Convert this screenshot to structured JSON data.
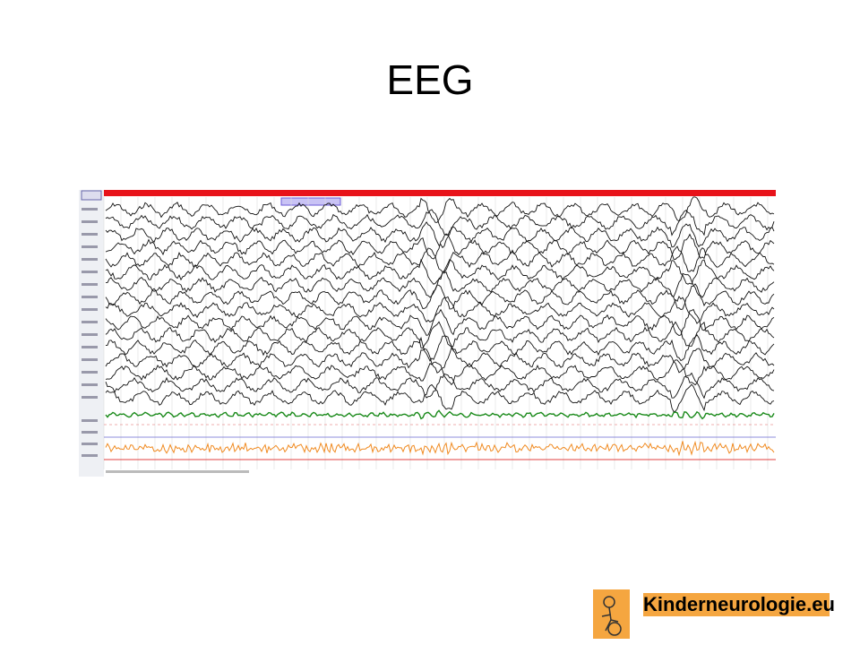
{
  "title": "EEG",
  "logo": {
    "text": "Kinderneurologie.eu"
  }
}
